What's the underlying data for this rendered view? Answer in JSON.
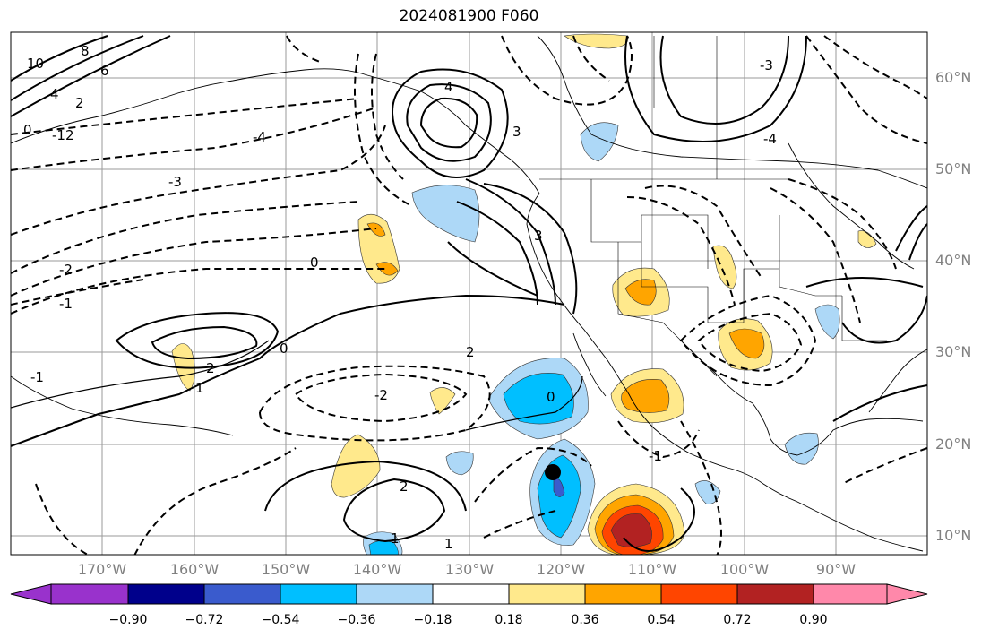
{
  "title": "2024081900 F060",
  "latitude_labels": [
    "60°N",
    "50°N",
    "40°N",
    "30°N",
    "20°N",
    "10°N"
  ],
  "longitude_labels": [
    "170°W",
    "160°W",
    "150°W",
    "140°W",
    "130°W",
    "120°W",
    "110°W",
    "100°W",
    "90°W"
  ],
  "colorbar": {
    "tick_labels": [
      "−0.90",
      "−0.72",
      "−0.54",
      "−0.36",
      "−0.18",
      "0.18",
      "0.36",
      "0.54",
      "0.72",
      "0.90"
    ],
    "colors": [
      "#9932cc",
      "#00008b",
      "#3a5bcd",
      "#00bfff",
      "#add8f7",
      "#ffffff",
      "#ffe98c",
      "#ffa500",
      "#ff4500",
      "#b22222",
      "#ff88aa"
    ]
  },
  "contour_labels": [
    "10",
    "8",
    "6",
    "4",
    "2",
    "0",
    "-1",
    "-2",
    "-3",
    "-4",
    "-12",
    "2",
    "3",
    "1",
    "-2",
    "-1",
    "0",
    "1",
    "2",
    "4",
    "3",
    "0",
    "-4",
    "-3",
    "2",
    "0",
    "-1",
    "1"
  ],
  "marker": "black-dot"
}
